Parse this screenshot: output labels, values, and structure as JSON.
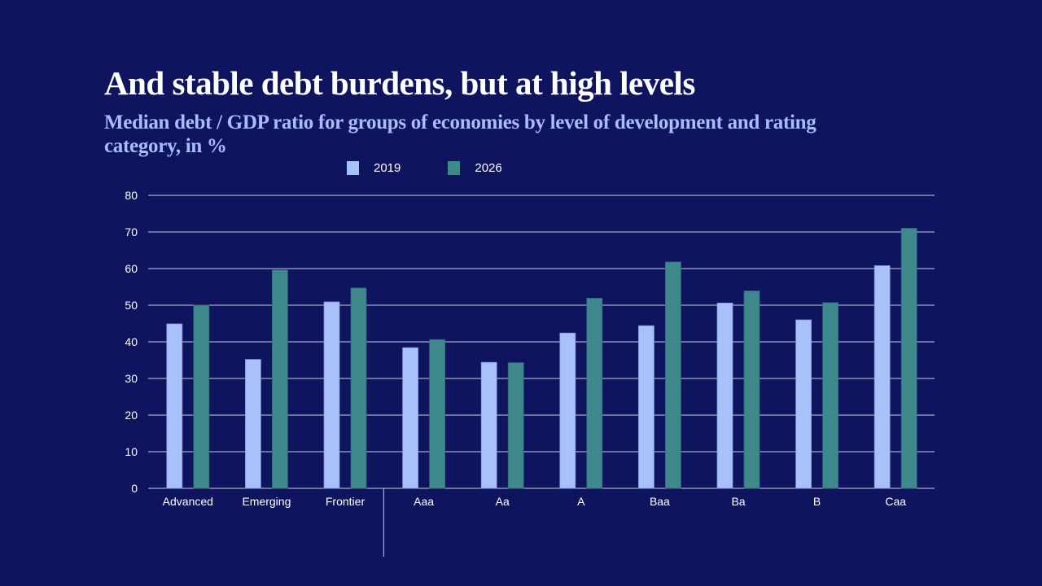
{
  "header": {
    "title": "And stable debt burdens, but at high levels",
    "subtitle": "Median debt / GDP ratio for groups of economies by level of development and rating category, in %"
  },
  "legend": [
    {
      "label": "2019",
      "color": "#a9c1fb"
    },
    {
      "label": "2026",
      "color": "#3f888c"
    }
  ],
  "chart_data": {
    "type": "bar",
    "title": "And stable debt burdens, but at high levels",
    "subtitle": "Median debt / GDP ratio for groups of economies by level of development and rating category, in %",
    "xlabel": "",
    "ylabel": "",
    "ylim": [
      0,
      80
    ],
    "yticks": [
      0,
      10,
      20,
      30,
      40,
      50,
      60,
      70,
      80
    ],
    "grid": true,
    "legend_position": "top-center",
    "categories": [
      "Advanced",
      "Emerging",
      "Frontier",
      "Aaa",
      "Aa",
      "A",
      "Baa",
      "Ba",
      "B",
      "Caa"
    ],
    "group_divider_after": "Frontier",
    "series": [
      {
        "name": "2019",
        "color": "#a9c1fb",
        "values": [
          44.9,
          35.2,
          50.9,
          38.4,
          34.4,
          42.4,
          44.4,
          50.6,
          46.0,
          60.8
        ]
      },
      {
        "name": "2026",
        "color": "#3f888c",
        "values": [
          50.0,
          59.6,
          54.7,
          40.6,
          34.3,
          51.9,
          61.8,
          53.9,
          50.7,
          71.0
        ]
      }
    ]
  }
}
